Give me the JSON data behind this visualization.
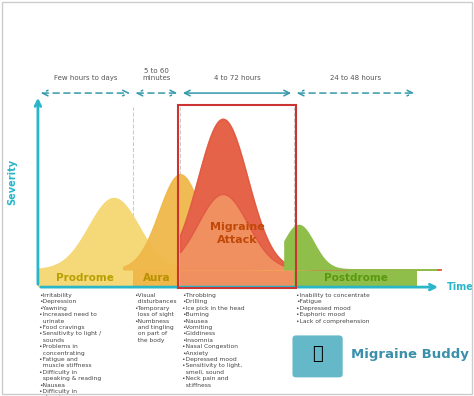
{
  "bg_color": "#ffffff",
  "axis_color": "#29b6c8",
  "curve_colors": {
    "prodrome_yellow": "#f5d878",
    "aura_orange": "#f0b84a",
    "attack_base": "#f09060",
    "attack_top": "#e05040",
    "postdrome_green": "#8fbe4a"
  },
  "stage_label_colors": {
    "prodrome": "#b8a000",
    "aura": "#b89000",
    "attack": "#c04808",
    "postdrome": "#5a9810"
  },
  "attack_box_color": "#cc3333",
  "div_color": "#cccccc",
  "arrow_color": "#3399aa",
  "duration_label_color": "#555555",
  "text_color": "#444444",
  "buddy_color": "#4aacbe",
  "buddy_text_color": "#3a8faa",
  "durations": [
    "Few hours to days",
    "5 to 60\nminutes",
    "4 to 72 hours",
    "24 to 48 hours"
  ],
  "stages": [
    "Prodrome",
    "Aura",
    "Migraine\nAttack",
    "Postdrome"
  ],
  "prodrome_symptoms": "•Irritability\n•Depression\n•Yawning\n•Increased need to\n  urinate\n•Food cravings\n•Sensitivity to light /\n  sounds\n•Problems in\n  concentrating\n•Fatigue and\n  muscle stiffness\n•Difficulty in\n  speaking & reading\n•Nausea\n•Difficulty in\n  sleeping",
  "aura_symptoms": "•Visual\n  disturbances\n•Temporary\n  loss of sight\n•Numbness\n  and tingling\n  on part of\n  the body",
  "attack_symptoms": "•Throbbing\n•Drilling\n•Ice pick in the head\n•Burning\n•Nausea\n•Vomiting\n•Giddiness\n•Insomnia\n•Nasal Congestion\n•Anxiety\n•Depressed mood\n•Sensitivity to light,\n  smell, sound\n•Neck pain and\n  stiffness",
  "postdrome_symptoms": "•Inability to concentrate\n•Fatigue\n•Depressed mood\n•Euphoric mood\n•Lack of comprehension",
  "severity_label": "Severity",
  "time_label": "Time",
  "migraine_buddy_text": "Migraine Buddy"
}
